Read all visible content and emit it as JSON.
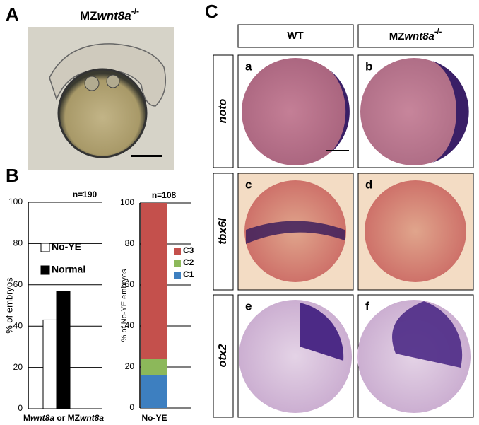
{
  "panel_labels": [
    "A",
    "B",
    "C"
  ],
  "panel_a": {
    "title": {
      "prefix": "MZ",
      "gene": "wnt8a",
      "sup": "-/-"
    }
  },
  "chart_data": [
    {
      "type": "bar",
      "title": "n=190",
      "y_label": "% of embryos",
      "x_label": {
        "prefix": "M",
        "gene1": "wnt8a",
        "middle": " or MZ",
        "gene2": "wnt8a"
      },
      "series": [
        {
          "name": "No-YE",
          "color": "#ffffff",
          "values": [
            43
          ]
        },
        {
          "name": "Normal",
          "color": "#000000",
          "values": [
            57
          ]
        }
      ],
      "ylim": [
        0,
        100
      ],
      "yticks": [
        0,
        20,
        40,
        60,
        80,
        100
      ],
      "grid": true
    },
    {
      "type": "stacked_bar",
      "title": "n=108",
      "y_label": "% of No-YE embryos",
      "categories": [
        "No-YE"
      ],
      "series": [
        {
          "name": "C1",
          "color": "#3d7fc0",
          "values": [
            16
          ]
        },
        {
          "name": "C2",
          "color": "#8cb85a",
          "values": [
            8
          ]
        },
        {
          "name": "C3",
          "color": "#c4504c",
          "values": [
            76
          ]
        }
      ],
      "ylim": [
        0,
        100
      ],
      "yticks": [
        0,
        20,
        40,
        60,
        80,
        100
      ],
      "grid": true
    }
  ],
  "panel_c": {
    "column_wt": "WT",
    "column_mz": {
      "prefix": "MZ",
      "gene": "wnt8a",
      "sup": "-/-"
    },
    "rows": [
      "noto",
      "tbx6l",
      "otx2"
    ],
    "subpanels": [
      "a",
      "b",
      "c",
      "d",
      "e",
      "f"
    ]
  }
}
